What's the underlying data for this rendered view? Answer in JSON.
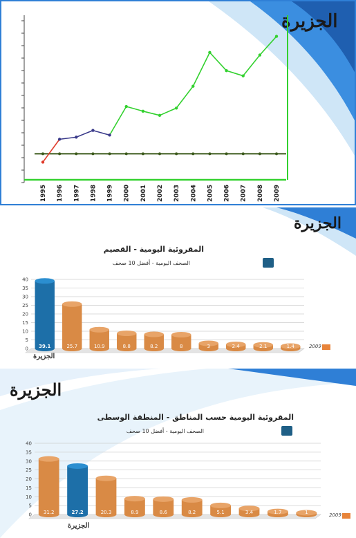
{
  "brand": {
    "logo_text": "الجزيرة"
  },
  "chart_data": [
    {
      "type": "line",
      "x": [
        "1995",
        "1996",
        "1997",
        "1998",
        "1999",
        "2000",
        "2001",
        "2002",
        "2003",
        "2004",
        "2005",
        "2006",
        "2007",
        "2008",
        "2009"
      ],
      "series": [
        {
          "values": [
            -1.6,
            2.8,
            3.2,
            4.5,
            3.6,
            9.1,
            8.2,
            7.4,
            8.8,
            13.0,
            19.5,
            16.0,
            15.0,
            19.0,
            22.6
          ]
        },
        {
          "values": [
            0,
            0,
            0,
            0,
            0,
            0,
            0,
            0,
            0,
            0,
            0,
            0,
            0,
            0,
            0
          ]
        }
      ],
      "colors": {
        "start": "#e03a2a",
        "early": "#3a3a8a",
        "later": "#33d12f",
        "baseline": "#3c5a1c"
      },
      "ylim": [
        -5,
        26
      ],
      "grid": false
    },
    {
      "type": "bar",
      "title": "المقروئية اليومية - القصيم",
      "subtitle": "الصحف اليومية - أفضل 10 صحف",
      "values": [
        39.1,
        25.7,
        10.9,
        8.8,
        8.2,
        8,
        3,
        2.4,
        2.1,
        1.4
      ],
      "labels": [
        "39.1",
        "25.7",
        "10.9",
        "8.8",
        "8.2",
        "8",
        "3",
        "2.4",
        "2.1",
        "1.4"
      ],
      "highlight_index": 0,
      "yticks": [
        "0",
        "5",
        "10",
        "15",
        "20",
        "25",
        "30",
        "35",
        "40"
      ],
      "ylim": [
        0,
        40
      ],
      "legend": "2009",
      "grid": true
    },
    {
      "type": "bar",
      "title": "المقروئية اليومية حسب المناطق - المنطقة الوسطى",
      "subtitle": "الصحف اليومية - أفضل 10 صحف",
      "values": [
        31.2,
        27.2,
        20.3,
        8.9,
        8.6,
        8.2,
        5.1,
        3.4,
        1.7,
        1
      ],
      "labels": [
        "31.2",
        "27.2",
        "20.3",
        "8.9",
        "8.6",
        "8.2",
        "5.1",
        "3.4",
        "1.7",
        "1"
      ],
      "highlight_index": 1,
      "yticks": [
        "0",
        "5",
        "10",
        "15",
        "20",
        "25",
        "30",
        "35",
        "40"
      ],
      "ylim": [
        0,
        40
      ],
      "legend": "2009",
      "grid": true
    }
  ],
  "colors": {
    "bar": "#d98a45",
    "bar_top": "#e8a468",
    "highlight": "#1d6fa8",
    "highlight_top": "#2b8ed0",
    "accent_blue": "#2f7fd6"
  }
}
